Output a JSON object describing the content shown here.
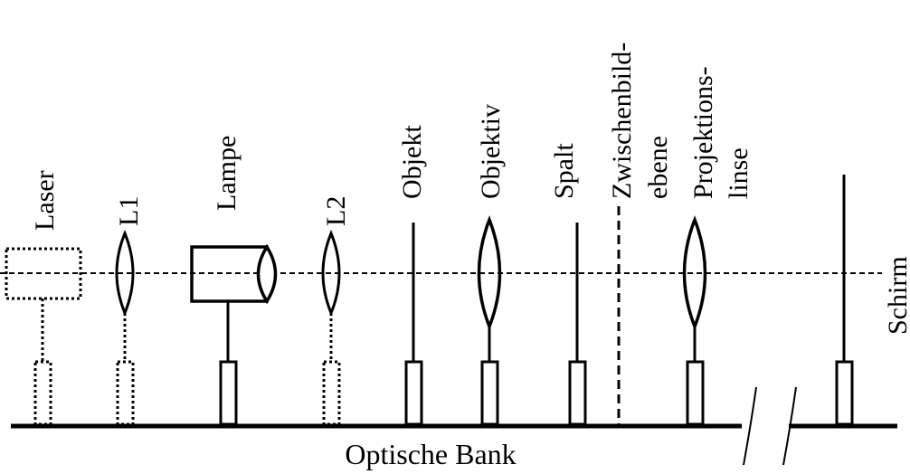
{
  "labels": {
    "laser": "Laser",
    "l1": "L1",
    "lampe": "Lampe",
    "l2": "L2",
    "objekt": "Objekt",
    "objektiv": "Objektiv",
    "spalt": "Spalt",
    "zwischen_1": "Zwischenbild-",
    "zwischen_2": "ebene",
    "projektion_1": "Projektions-",
    "projektion_2": "linse",
    "schirm": "Schirm",
    "bank": "Optische Bank"
  }
}
